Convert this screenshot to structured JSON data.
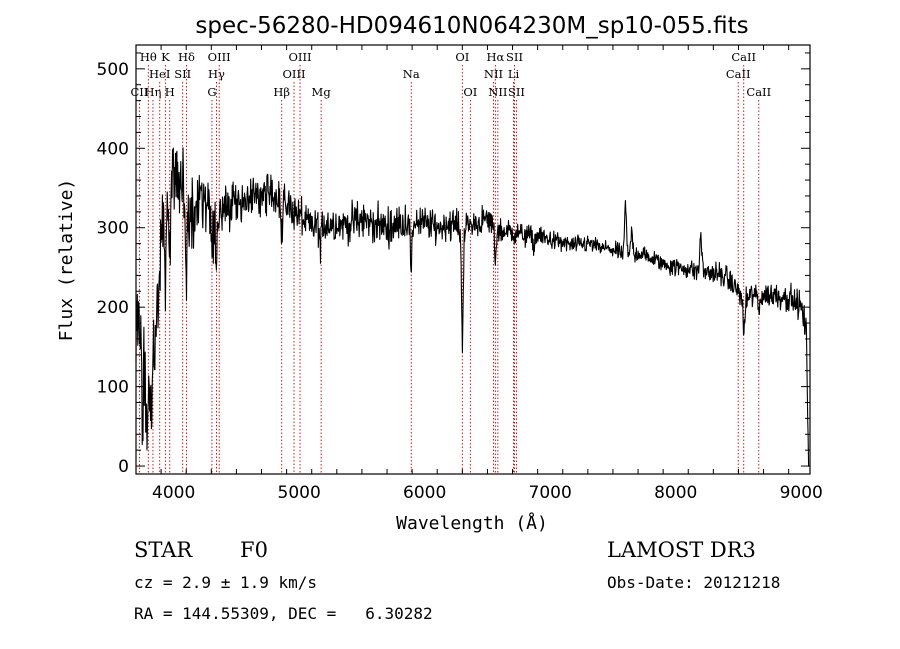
{
  "chart_data": {
    "type": "line",
    "title": "spec-56280-HD094610N064230M_sp10-055.fits",
    "xlabel": "Wavelength (Å)",
    "ylabel": "Flux (relative)",
    "xlim": [
      3700,
      9070
    ],
    "ylim": [
      -10,
      530
    ],
    "xticks": [
      4000,
      5000,
      6000,
      7000,
      8000,
      9000
    ],
    "yticks": [
      0,
      100,
      200,
      300,
      400,
      500
    ],
    "line_color": "#000000",
    "marker_color": "#cc0000",
    "line_markers": [
      {
        "label": "CII",
        "wavelength": 3727,
        "row": 3
      },
      {
        "label": "Hθ",
        "wavelength": 3798,
        "row": 1
      },
      {
        "label": "Hη",
        "wavelength": 3835,
        "row": 3
      },
      {
        "label": "HeI",
        "wavelength": 3889,
        "row": 2
      },
      {
        "label": "K",
        "wavelength": 3934,
        "row": 1
      },
      {
        "label": "H",
        "wavelength": 3969,
        "row": 3
      },
      {
        "label": "SII",
        "wavelength": 4072,
        "row": 2
      },
      {
        "label": "Hδ",
        "wavelength": 4102,
        "row": 1
      },
      {
        "label": "G",
        "wavelength": 4305,
        "row": 3
      },
      {
        "label": "Hγ",
        "wavelength": 4341,
        "row": 2
      },
      {
        "label": "OIII",
        "wavelength": 4363,
        "row": 1
      },
      {
        "label": "Hβ",
        "wavelength": 4861,
        "row": 3
      },
      {
        "label": "OIII",
        "wavelength": 4959,
        "row": 2
      },
      {
        "label": "OIII",
        "wavelength": 5007,
        "row": 1
      },
      {
        "label": "Mg",
        "wavelength": 5175,
        "row": 3
      },
      {
        "label": "Na",
        "wavelength": 5893,
        "row": 2
      },
      {
        "label": "OI",
        "wavelength": 6300,
        "row": 1
      },
      {
        "label": "OI",
        "wavelength": 6364,
        "row": 3
      },
      {
        "label": "NII",
        "wavelength": 6548,
        "row": 2
      },
      {
        "label": "Hα",
        "wavelength": 6563,
        "row": 1
      },
      {
        "label": "NII",
        "wavelength": 6583,
        "row": 3
      },
      {
        "label": "Li",
        "wavelength": 6708,
        "row": 2
      },
      {
        "label": "SII",
        "wavelength": 6716,
        "row": 1
      },
      {
        "label": "SII",
        "wavelength": 6731,
        "row": 3
      },
      {
        "label": "CaII",
        "wavelength": 8498,
        "row": 2
      },
      {
        "label": "CaII",
        "wavelength": 8542,
        "row": 1
      },
      {
        "label": "CaII",
        "wavelength": 8662,
        "row": 3
      }
    ],
    "anchors": [
      [
        3700,
        130
      ],
      [
        3720,
        330
      ],
      [
        3760,
        300
      ],
      [
        3800,
        250
      ],
      [
        3850,
        300
      ],
      [
        3900,
        300
      ],
      [
        3950,
        330
      ],
      [
        4000,
        360
      ],
      [
        4050,
        350
      ],
      [
        4100,
        330
      ],
      [
        4150,
        320
      ],
      [
        4200,
        330
      ],
      [
        4300,
        320
      ],
      [
        4400,
        320
      ],
      [
        4500,
        335
      ],
      [
        4600,
        335
      ],
      [
        4700,
        340
      ],
      [
        4800,
        345
      ],
      [
        4900,
        330
      ],
      [
        5000,
        315
      ],
      [
        5100,
        300
      ],
      [
        5200,
        305
      ],
      [
        5300,
        305
      ],
      [
        5400,
        305
      ],
      [
        5500,
        310
      ],
      [
        5600,
        305
      ],
      [
        5700,
        300
      ],
      [
        5800,
        305
      ],
      [
        5900,
        310
      ],
      [
        6000,
        305
      ],
      [
        6100,
        300
      ],
      [
        6200,
        305
      ],
      [
        6300,
        300
      ],
      [
        6400,
        305
      ],
      [
        6500,
        310
      ],
      [
        6600,
        295
      ],
      [
        6700,
        295
      ],
      [
        6800,
        290
      ],
      [
        6900,
        290
      ],
      [
        7000,
        285
      ],
      [
        7100,
        280
      ],
      [
        7200,
        278
      ],
      [
        7300,
        280
      ],
      [
        7400,
        275
      ],
      [
        7500,
        272
      ],
      [
        7600,
        265
      ],
      [
        7700,
        268
      ],
      [
        7800,
        262
      ],
      [
        7900,
        255
      ],
      [
        8000,
        250
      ],
      [
        8100,
        248
      ],
      [
        8200,
        245
      ],
      [
        8300,
        243
      ],
      [
        8400,
        238
      ],
      [
        8500,
        220
      ],
      [
        8550,
        205
      ],
      [
        8600,
        215
      ],
      [
        8700,
        215
      ],
      [
        8800,
        215
      ],
      [
        8900,
        212
      ],
      [
        9000,
        200
      ],
      [
        9040,
        170
      ],
      [
        9060,
        0
      ]
    ],
    "features": [
      [
        3720,
        -150
      ],
      [
        3738,
        -140
      ],
      [
        3752,
        -180
      ],
      [
        3765,
        -130
      ],
      [
        3780,
        -200
      ],
      [
        3795,
        -150
      ],
      [
        3810,
        -120
      ],
      [
        3828,
        -210
      ],
      [
        3845,
        -140
      ],
      [
        3860,
        -120
      ],
      [
        3880,
        -110
      ],
      [
        3932,
        -100
      ],
      [
        3966,
        -90
      ],
      [
        4102,
        -80
      ],
      [
        4340,
        -60
      ],
      [
        4306,
        -50
      ],
      [
        4861,
        -50
      ],
      [
        5170,
        -30
      ],
      [
        5893,
        -70
      ],
      [
        6300,
        -140
      ],
      [
        6563,
        -40
      ],
      [
        6870,
        -15
      ],
      [
        7600,
        65
      ],
      [
        8200,
        50
      ],
      [
        7650,
        30
      ],
      [
        8542,
        -40
      ],
      [
        8662,
        -20
      ]
    ],
    "noise": [
      [
        3700,
        70
      ],
      [
        3800,
        75
      ],
      [
        3900,
        60
      ],
      [
        4000,
        55
      ],
      [
        4100,
        50
      ],
      [
        4200,
        45
      ],
      [
        4300,
        40
      ],
      [
        4500,
        28
      ],
      [
        5000,
        25
      ],
      [
        5500,
        25
      ],
      [
        6000,
        22
      ],
      [
        6500,
        18
      ],
      [
        7000,
        12
      ],
      [
        7500,
        11
      ],
      [
        8000,
        12
      ],
      [
        8500,
        16
      ],
      [
        9000,
        18
      ],
      [
        9070,
        18
      ]
    ]
  },
  "info": {
    "object_class": "STAR",
    "subclass": "F0",
    "survey": "LAMOST DR3",
    "cz": "cz = 2.9 ± 1.9 km/s",
    "obs_date": "Obs-Date: 20121218",
    "coords": "RA = 144.55309, DEC =   6.30282"
  }
}
